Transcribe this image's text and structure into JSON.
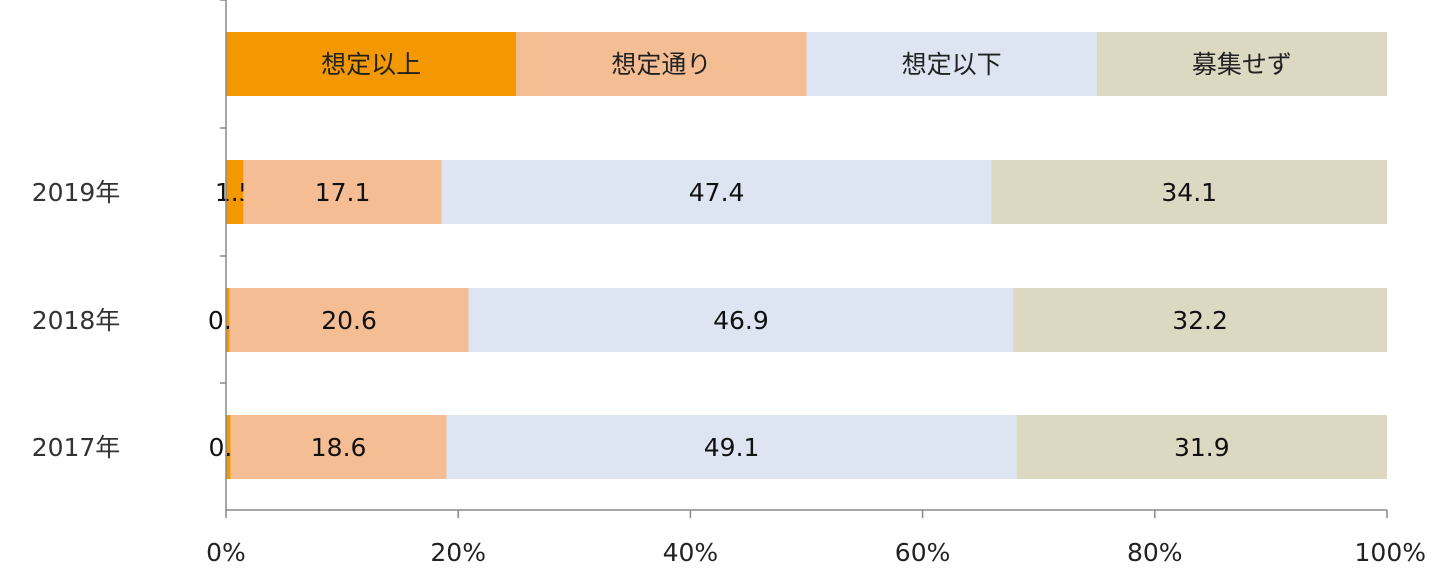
{
  "chart_data": {
    "type": "bar",
    "orientation": "horizontal",
    "stacked": "percent",
    "categories": [
      "2019年",
      "2018年",
      "2017年"
    ],
    "series": [
      {
        "name": "想定以上",
        "color": "#F39800",
        "values": [
          1.5,
          0.3,
          0.4
        ]
      },
      {
        "name": "想定通り",
        "color": "#F4BD93",
        "values": [
          17.1,
          20.6,
          18.6
        ]
      },
      {
        "name": "想定以下",
        "color": "#DCE5F1",
        "values": [
          47.4,
          46.9,
          49.1
        ]
      },
      {
        "name": "募集せず",
        "color": "#DDD8C1",
        "values": [
          34.1,
          32.2,
          31.9
        ]
      }
    ],
    "x_ticks": [
      "0%",
      "20%",
      "40%",
      "60%",
      "80%",
      "100%"
    ],
    "xlim": [
      0,
      100
    ],
    "legend": "top",
    "grid": false
  }
}
